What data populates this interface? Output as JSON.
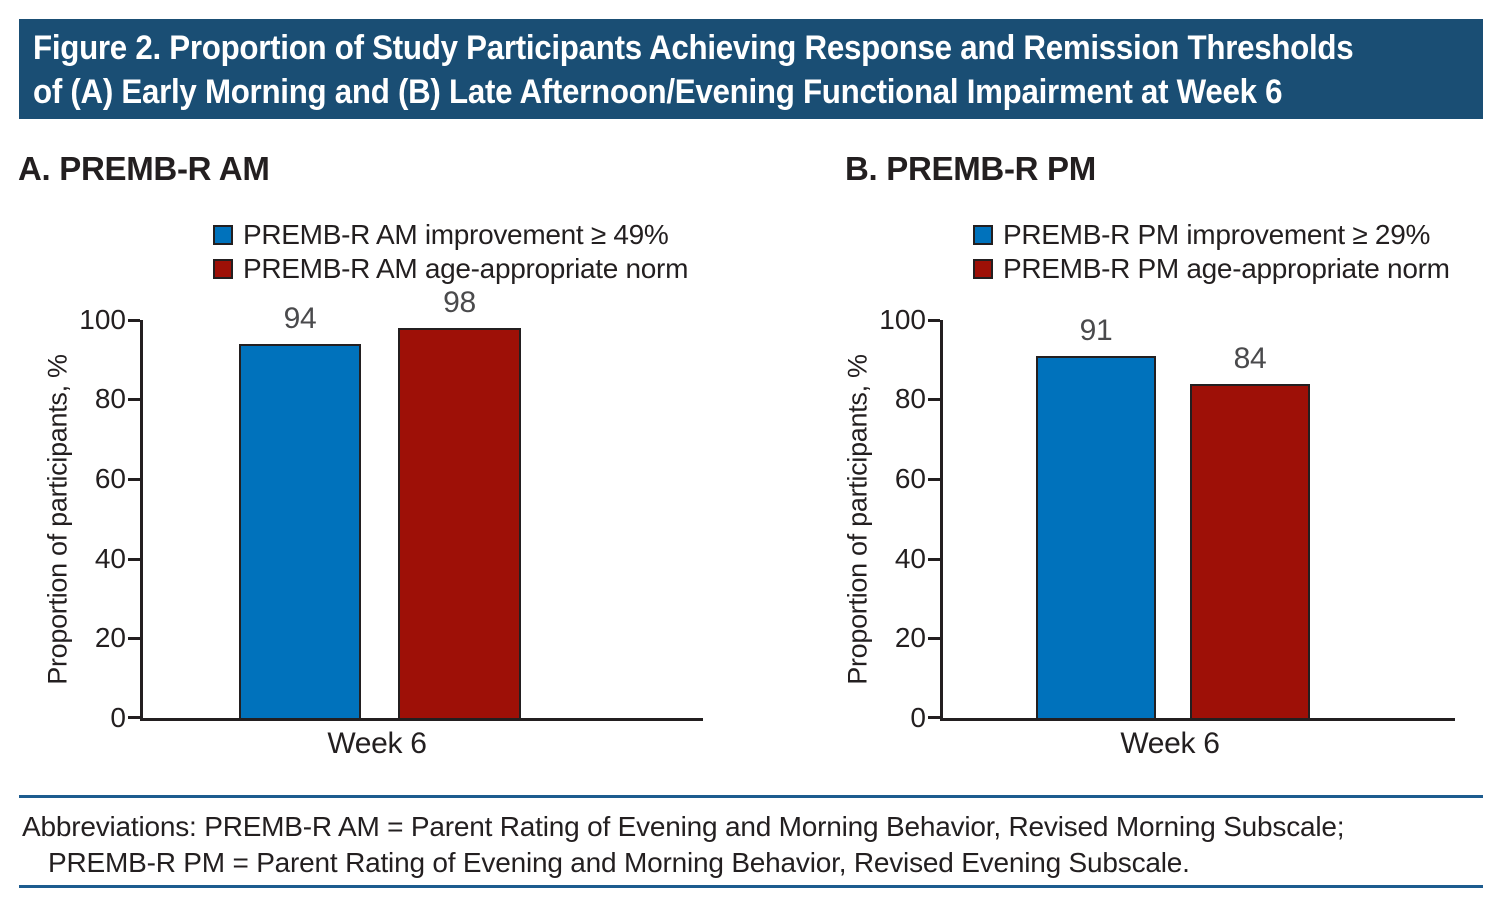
{
  "banner": {
    "line1": "Figure 2. Proportion of Study Participants Achieving Response and Remission Thresholds",
    "line2": "of (A) Early Morning and (B) Late Afternoon/Evening Functional Impairment at Week 6",
    "bg_color": "#1A4E74"
  },
  "colors": {
    "improvement_blue": "#0072BC",
    "norm_red": "#9E1007",
    "axis_black": "#231F20",
    "rule_blue": "#1D5C8F"
  },
  "chart_data": [
    {
      "type": "bar",
      "panel_label": "A. PREMB-R AM",
      "categories": [
        "Week 6"
      ],
      "series": [
        {
          "name": "PREMB-R AM improvement ≥ 49%",
          "values": [
            94
          ],
          "color": "#0072BC"
        },
        {
          "name": "PREMB-R AM age-appropriate norm",
          "values": [
            98
          ],
          "color": "#9E1007"
        }
      ],
      "legend": [
        {
          "label": "PREMB-R AM improvement ≥ 49%",
          "color": "#0072BC"
        },
        {
          "label": "PREMB-R AM age-appropriate norm",
          "color": "#9E1007"
        }
      ],
      "xlabel": "Week 6",
      "ylabel": "Proportion of participants, %",
      "ylim": [
        0,
        100
      ],
      "yticks": [
        0,
        20,
        40,
        60,
        80,
        100
      ],
      "grid": false,
      "legend_position": "top"
    },
    {
      "type": "bar",
      "panel_label": "B. PREMB-R PM",
      "categories": [
        "Week 6"
      ],
      "series": [
        {
          "name": "PREMB-R PM improvement ≥ 29%",
          "values": [
            91
          ],
          "color": "#0072BC"
        },
        {
          "name": "PREMB-R PM age-appropriate norm",
          "values": [
            84
          ],
          "color": "#9E1007"
        }
      ],
      "legend": [
        {
          "label": "PREMB-R PM improvement ≥ 29%",
          "color": "#0072BC"
        },
        {
          "label": "PREMB-R PM age-appropriate norm",
          "color": "#9E1007"
        }
      ],
      "xlabel": "Week 6",
      "ylabel": "Proportion of participants, %",
      "ylim": [
        0,
        100
      ],
      "yticks": [
        0,
        20,
        40,
        60,
        80,
        100
      ],
      "grid": false,
      "legend_position": "top"
    }
  ],
  "footer": {
    "line1": "Abbreviations: PREMB-R AM = Parent Rating of Evening and Morning Behavior, Revised Morning Subscale;",
    "line2": "PREMB-R PM =  Parent Rating of Evening and Morning Behavior, Revised Evening Subscale."
  }
}
